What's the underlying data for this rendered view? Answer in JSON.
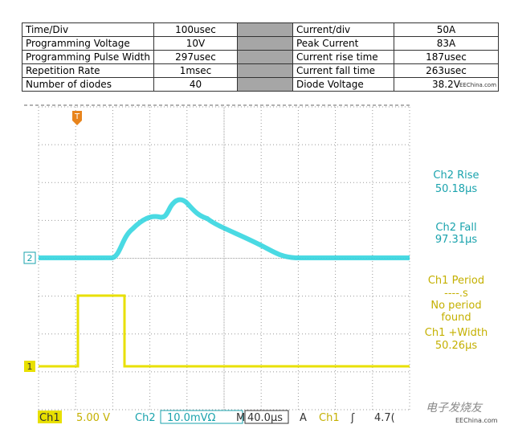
{
  "table": {
    "rows": [
      [
        "Time/Div",
        "100usec",
        "Current/div",
        "50A"
      ],
      [
        "Programming Voltage",
        "10V",
        "Peak Current",
        "83A"
      ],
      [
        "Programming Pulse Width",
        "297usec",
        "Current rise time",
        "187usec"
      ],
      [
        "Repetition Rate",
        "1msec",
        "Current fall time",
        "263usec"
      ],
      [
        "Number of diodes",
        "40",
        "Diode Voltage",
        "38.2V"
      ]
    ]
  },
  "watermark_top": "EEChina.com",
  "scope": {
    "markers": {
      "trigger": "T",
      "ch2": "2",
      "ch1": "1"
    },
    "readouts": [
      {
        "label": "Ch2 Rise",
        "value": "50.18µs",
        "color": "#1aa3ad"
      },
      {
        "label": "Ch2 Fall",
        "value": "97.31µs",
        "color": "#1aa3ad"
      },
      {
        "label": "Ch1 Period",
        "value": "----.s",
        "note": [
          "No period",
          "found"
        ],
        "color": "#c4b000"
      },
      {
        "label": "Ch1 +Width",
        "value": "50.26µs",
        "color": "#c4b000"
      }
    ],
    "status": {
      "ch1": "Ch1",
      "ch1_scale": "5.00 V",
      "ch2": "Ch2",
      "ch2_scale": "10.0mVΩ",
      "timebase_label": "M",
      "timebase": "40.0µs",
      "trigger_mode": "A",
      "trigger_source": "Ch1",
      "trigger_slope": "ʃ",
      "trigger_level": "4.7("
    },
    "logo": "电子发烧友",
    "watermark": "EEChina.com"
  }
}
